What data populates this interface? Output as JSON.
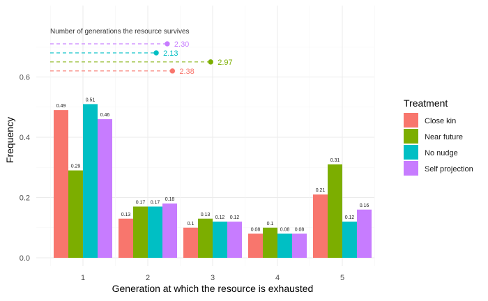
{
  "chart_data": {
    "type": "bar",
    "title": "",
    "xlabel": "Generation at which the resource is exhausted",
    "ylabel": "Frequency",
    "categories": [
      "1",
      "2",
      "3",
      "4",
      "5"
    ],
    "ylim": [
      0,
      0.8
    ],
    "yticks": [
      "0.0",
      "0.2",
      "0.4",
      "0.6"
    ],
    "grid": true,
    "legend": {
      "title": "Treatment",
      "position": "right"
    },
    "series": [
      {
        "name": "Close kin",
        "color": "#F8766D",
        "values": [
          0.49,
          0.13,
          0.1,
          0.08,
          0.21
        ],
        "labels": [
          "0.49",
          "0.13",
          "0.1",
          "0.08",
          "0.21"
        ]
      },
      {
        "name": "Near future",
        "color": "#7CAE00",
        "values": [
          0.29,
          0.17,
          0.13,
          0.1,
          0.31
        ],
        "labels": [
          "0.29",
          "0.17",
          "0.13",
          "0.1",
          "0.31"
        ]
      },
      {
        "name": "No nudge",
        "color": "#00BFC4",
        "values": [
          0.51,
          0.17,
          0.12,
          0.08,
          0.12
        ],
        "labels": [
          "0.51",
          "0.17",
          "0.12",
          "0.08",
          "0.12"
        ]
      },
      {
        "name": "Self projection",
        "color": "#C77CFF",
        "values": [
          0.46,
          0.18,
          0.12,
          0.08,
          0.16
        ],
        "labels": [
          "0.46",
          "0.18",
          "0.12",
          "0.08",
          "0.16"
        ]
      }
    ],
    "annotation": {
      "title": "Number of generations the resource survives",
      "lines": [
        {
          "series": "Self projection",
          "color": "#C77CFF",
          "x": 2.3,
          "y": 0.71,
          "label": "2.30"
        },
        {
          "series": "No nudge",
          "color": "#00BFC4",
          "x": 2.13,
          "y": 0.68,
          "label": "2.13"
        },
        {
          "series": "Near future",
          "color": "#7CAE00",
          "x": 2.97,
          "y": 0.65,
          "label": "2.97"
        },
        {
          "series": "Close kin",
          "color": "#F8766D",
          "x": 2.38,
          "y": 0.62,
          "label": "2.38"
        }
      ]
    }
  }
}
